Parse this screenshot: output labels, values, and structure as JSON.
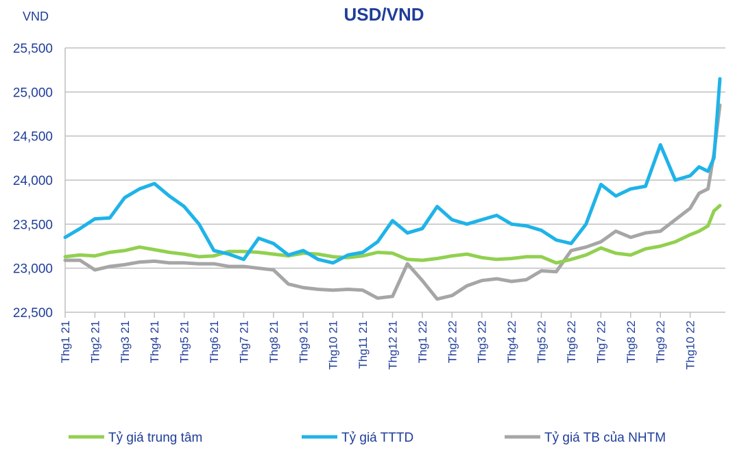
{
  "chart_data": {
    "type": "line",
    "title": "USD/VND",
    "ylabel": "VND",
    "xlabel": "",
    "ylim": [
      22500,
      25500
    ],
    "yticks": [
      22500,
      23000,
      23500,
      24000,
      24500,
      25000,
      25500
    ],
    "ytick_labels": [
      "22,500",
      "23,000",
      "23,500",
      "24,000",
      "24,500",
      "25,000",
      "25,500"
    ],
    "categories": [
      "Thg1 21",
      "Thg2 21",
      "Thg3 21",
      "Thg4 21",
      "Thg5 21",
      "Thg6 21",
      "Thg7 21",
      "Thg8 21",
      "Thg9 21",
      "Thg10 21",
      "Thg11 21",
      "Thg12 21",
      "Thg1 22",
      "Thg2 22",
      "Thg3 22",
      "Thg4 22",
      "Thg5 22",
      "Thg6 22",
      "Thg7 22",
      "Thg8 22",
      "Thg9 22",
      "Thg10 22"
    ],
    "x": [
      0,
      0.5,
      1,
      1.5,
      2,
      2.5,
      3,
      3.5,
      4,
      4.5,
      5,
      5.5,
      6,
      6.5,
      7,
      7.5,
      8,
      8.5,
      9,
      9.5,
      10,
      10.5,
      11,
      11.5,
      12,
      12.5,
      13,
      13.5,
      14,
      14.5,
      15,
      15.5,
      16,
      16.5,
      17,
      17.5,
      18,
      18.5,
      19,
      19.5,
      20,
      20.5,
      21,
      21.3,
      21.6,
      21.8,
      22
    ],
    "series": [
      {
        "name": "Tỷ giá trung tâm",
        "color": "#92d050",
        "values": [
          23130,
          23150,
          23140,
          23180,
          23200,
          23240,
          23210,
          23180,
          23160,
          23130,
          23140,
          23190,
          23190,
          23180,
          23160,
          23140,
          23170,
          23160,
          23130,
          23120,
          23140,
          23180,
          23170,
          23100,
          23090,
          23110,
          23140,
          23160,
          23120,
          23100,
          23110,
          23130,
          23130,
          23060,
          23100,
          23150,
          23230,
          23170,
          23150,
          23220,
          23250,
          23300,
          23380,
          23420,
          23480,
          23650,
          23710
        ]
      },
      {
        "name": "Tỷ giá TTTD",
        "color": "#1fb3e8",
        "values": [
          23350,
          23450,
          23560,
          23570,
          23800,
          23900,
          23960,
          23820,
          23700,
          23500,
          23200,
          23160,
          23100,
          23340,
          23280,
          23150,
          23200,
          23100,
          23060,
          23150,
          23180,
          23300,
          23540,
          23400,
          23450,
          23700,
          23550,
          23500,
          23550,
          23600,
          23500,
          23480,
          23430,
          23320,
          23280,
          23500,
          23950,
          23820,
          23900,
          23930,
          24400,
          24000,
          24050,
          24150,
          24100,
          24250,
          25150
        ]
      },
      {
        "name": "Tỷ giá TB của NHTM",
        "color": "#a6a6a6",
        "values": [
          23090,
          23090,
          22980,
          23020,
          23040,
          23070,
          23080,
          23060,
          23060,
          23050,
          23050,
          23020,
          23020,
          23000,
          22980,
          22820,
          22780,
          22760,
          22750,
          22760,
          22750,
          22660,
          22680,
          23050,
          22860,
          22650,
          22690,
          22800,
          22860,
          22880,
          22850,
          22870,
          22970,
          22960,
          23200,
          23240,
          23300,
          23420,
          23350,
          23400,
          23420,
          23550,
          23680,
          23850,
          23900,
          24300,
          24850
        ]
      }
    ],
    "legend_position": "bottom",
    "grid": "horizontal"
  }
}
